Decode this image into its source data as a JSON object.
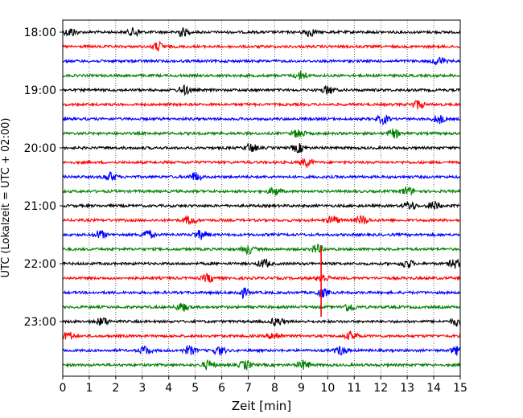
{
  "chart_data": {
    "type": "line",
    "subtype": "helicorder",
    "title": "",
    "xlabel": "Zeit  [min]",
    "ylabel": "UTC (Lokalzeit = UTC + 02:00)",
    "xlim": [
      0,
      15
    ],
    "x_ticks": [
      "0",
      "1",
      "2",
      "3",
      "4",
      "5",
      "6",
      "7",
      "8",
      "9",
      "10",
      "11",
      "12",
      "13",
      "14",
      "15"
    ],
    "y_ticks": [
      {
        "label": "18:00",
        "trace_index": 0
      },
      {
        "label": "19:00",
        "trace_index": 4
      },
      {
        "label": "20:00",
        "trace_index": 8
      },
      {
        "label": "21:00",
        "trace_index": 12
      },
      {
        "label": "22:00",
        "trace_index": 16
      },
      {
        "label": "23:00",
        "trace_index": 20
      }
    ],
    "trace_interval_minutes": 15,
    "trace_count": 24,
    "trace_color_cycle": [
      "#000000",
      "#ff0000",
      "#0000ff",
      "#008000"
    ],
    "vertical_grid": "dotted, every minute",
    "events": [
      {
        "trace_index": 0,
        "minutes": [
          0.3,
          2.7,
          4.5,
          9.3
        ]
      },
      {
        "trace_index": 1,
        "minutes": [
          3.6
        ]
      },
      {
        "trace_index": 2,
        "minutes": [
          14.2
        ]
      },
      {
        "trace_index": 3,
        "minutes": [
          9.0
        ]
      },
      {
        "trace_index": 4,
        "minutes": [
          4.6,
          10.0
        ]
      },
      {
        "trace_index": 5,
        "minutes": [
          13.4
        ]
      },
      {
        "trace_index": 6,
        "minutes": [
          12.1,
          14.2
        ]
      },
      {
        "trace_index": 7,
        "minutes": [
          8.9,
          12.5
        ]
      },
      {
        "trace_index": 8,
        "minutes": [
          7.1,
          8.9
        ]
      },
      {
        "trace_index": 9,
        "minutes": [
          9.2
        ]
      },
      {
        "trace_index": 10,
        "minutes": [
          1.8,
          5.0
        ]
      },
      {
        "trace_index": 11,
        "minutes": [
          8.0,
          13.0
        ]
      },
      {
        "trace_index": 12,
        "minutes": [
          13.1,
          14.0
        ]
      },
      {
        "trace_index": 13,
        "minutes": [
          4.8,
          10.2,
          11.3
        ]
      },
      {
        "trace_index": 14,
        "minutes": [
          1.4,
          3.2,
          5.2
        ]
      },
      {
        "trace_index": 15,
        "minutes": [
          7.0,
          9.6
        ]
      },
      {
        "trace_index": 16,
        "minutes": [
          7.6,
          13.0,
          14.8
        ]
      },
      {
        "trace_index": 17,
        "minutes": [
          5.5,
          9.8
        ]
      },
      {
        "trace_index": 18,
        "minutes": [
          6.8,
          9.8
        ]
      },
      {
        "trace_index": 19,
        "minutes": [
          4.5,
          10.8
        ]
      },
      {
        "trace_index": 20,
        "minutes": [
          1.5,
          8.1,
          14.9
        ]
      },
      {
        "trace_index": 21,
        "minutes": [
          0.2,
          8.0,
          10.9
        ]
      },
      {
        "trace_index": 22,
        "minutes": [
          3.1,
          4.8,
          5.9,
          10.5,
          14.9
        ]
      },
      {
        "trace_index": 23,
        "minutes": [
          5.5,
          6.9,
          9.1
        ]
      }
    ],
    "big_spike": {
      "minute": 9.75,
      "from_trace": 15,
      "to_trace": 19,
      "color": "#ff0000"
    }
  }
}
